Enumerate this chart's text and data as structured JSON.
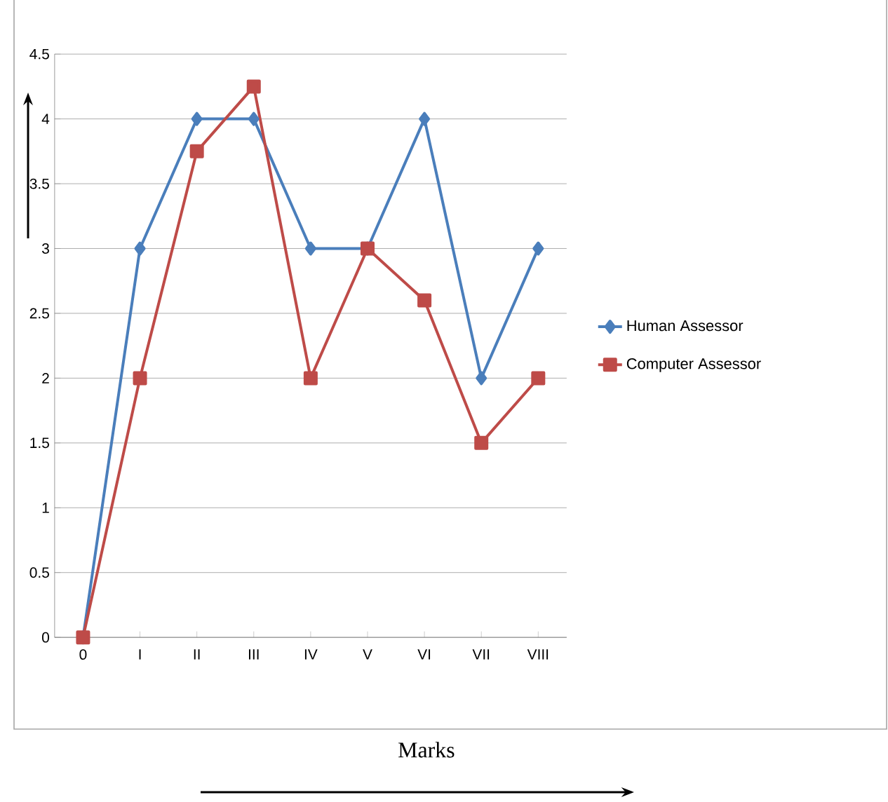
{
  "chart_data": {
    "type": "line",
    "xlabel": "Marks",
    "categories": [
      "0",
      "I",
      "II",
      "III",
      "IV",
      "V",
      "VI",
      "VII",
      "VIII"
    ],
    "series": [
      {
        "name": "Human Assessor",
        "color": "#4a7ebb",
        "marker": "diamond",
        "values": [
          0,
          3,
          4,
          4,
          3,
          3,
          4,
          2,
          3
        ]
      },
      {
        "name": "Computer Assessor",
        "color": "#be4b48",
        "marker": "square",
        "values": [
          0,
          2,
          3.75,
          4.25,
          2,
          3,
          2.6,
          1.5,
          2
        ]
      }
    ],
    "ylim": [
      0,
      4.5
    ],
    "yticks": [
      0,
      0.5,
      1,
      1.5,
      2,
      2.5,
      3,
      3.5,
      4,
      4.5
    ],
    "grid": "y",
    "legend": "right"
  }
}
